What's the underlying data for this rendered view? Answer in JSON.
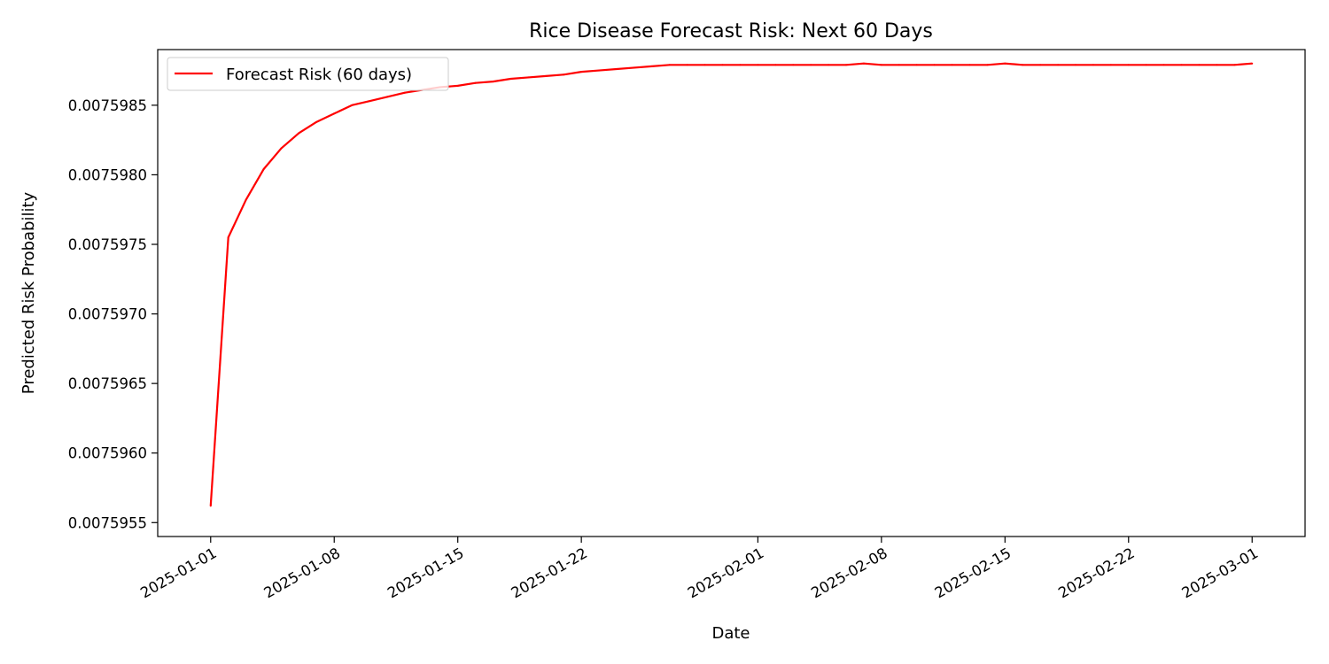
{
  "chart_data": {
    "type": "line",
    "title": "Rice Disease Forecast Risk: Next 60 Days",
    "xlabel": "Date",
    "ylabel": "Predicted Risk Probability",
    "legend_position": "upper-left",
    "grid": false,
    "x_ticks": [
      "2025-01-01",
      "2025-01-08",
      "2025-01-15",
      "2025-01-22",
      "2025-02-01",
      "2025-02-08",
      "2025-02-15",
      "2025-02-22",
      "2025-03-01"
    ],
    "y_ticks": [
      "0.0075955",
      "0.0075960",
      "0.0075965",
      "0.0075970",
      "0.0075975",
      "0.0075980",
      "0.0075985"
    ],
    "xlim": [
      "2024-12-29",
      "2025-03-04"
    ],
    "ylim": [
      0.0075954,
      0.0075989
    ],
    "series": [
      {
        "name": "Forecast Risk (60 days)",
        "color": "#ff0000",
        "x": [
          "2025-01-01",
          "2025-01-02",
          "2025-01-03",
          "2025-01-04",
          "2025-01-05",
          "2025-01-06",
          "2025-01-07",
          "2025-01-08",
          "2025-01-09",
          "2025-01-10",
          "2025-01-11",
          "2025-01-12",
          "2025-01-13",
          "2025-01-14",
          "2025-01-15",
          "2025-01-16",
          "2025-01-17",
          "2025-01-18",
          "2025-01-19",
          "2025-01-20",
          "2025-01-21",
          "2025-01-22",
          "2025-01-23",
          "2025-01-24",
          "2025-01-25",
          "2025-01-26",
          "2025-01-27",
          "2025-01-28",
          "2025-01-29",
          "2025-01-30",
          "2025-01-31",
          "2025-02-01",
          "2025-02-02",
          "2025-02-03",
          "2025-02-04",
          "2025-02-05",
          "2025-02-06",
          "2025-02-07",
          "2025-02-08",
          "2025-02-09",
          "2025-02-10",
          "2025-02-11",
          "2025-02-12",
          "2025-02-13",
          "2025-02-14",
          "2025-02-15",
          "2025-02-16",
          "2025-02-17",
          "2025-02-18",
          "2025-02-19",
          "2025-02-20",
          "2025-02-21",
          "2025-02-22",
          "2025-02-23",
          "2025-02-24",
          "2025-02-25",
          "2025-02-26",
          "2025-02-27",
          "2025-02-28",
          "2025-03-01"
        ],
        "values": [
          0.00759562,
          0.00759755,
          0.00759782,
          0.00759804,
          0.00759819,
          0.0075983,
          0.00759838,
          0.00759844,
          0.0075985,
          0.00759853,
          0.00759856,
          0.00759859,
          0.00759861,
          0.00759863,
          0.00759864,
          0.00759866,
          0.00759867,
          0.00759869,
          0.0075987,
          0.00759871,
          0.00759872,
          0.00759874,
          0.00759875,
          0.00759876,
          0.00759877,
          0.00759878,
          0.00759879,
          0.00759879,
          0.00759879,
          0.00759879,
          0.00759879,
          0.00759879,
          0.00759879,
          0.00759879,
          0.00759879,
          0.00759879,
          0.00759879,
          0.0075988,
          0.00759879,
          0.00759879,
          0.00759879,
          0.00759879,
          0.00759879,
          0.00759879,
          0.00759879,
          0.0075988,
          0.00759879,
          0.00759879,
          0.00759879,
          0.00759879,
          0.00759879,
          0.00759879,
          0.00759879,
          0.00759879,
          0.00759879,
          0.00759879,
          0.00759879,
          0.00759879,
          0.00759879,
          0.0075988
        ]
      }
    ]
  }
}
